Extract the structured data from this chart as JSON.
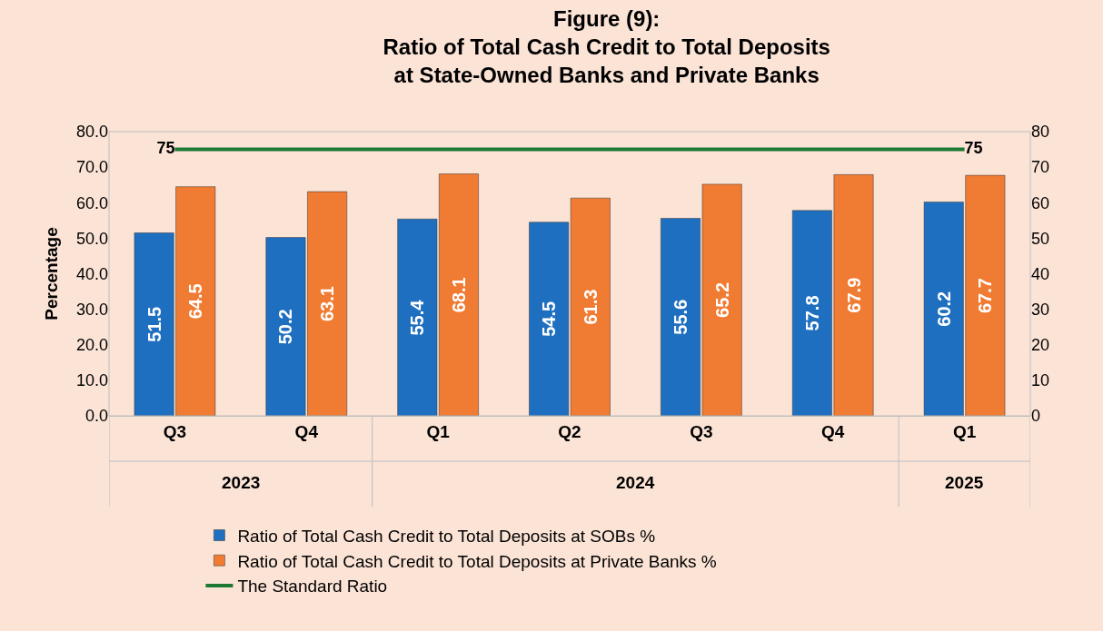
{
  "chart_data": {
    "type": "bar",
    "title": "Figure (9):\nRatio of Total Cash Credit to Total Deposits\nat State-Owned Banks and Private Banks",
    "ylabel": "Percentage",
    "categories": [
      "Q3",
      "Q4",
      "Q1",
      "Q2",
      "Q3",
      "Q4",
      "Q1"
    ],
    "annotations": [
      "2023",
      "2024",
      "2025"
    ],
    "series": [
      {
        "name": "Ratio of Total Cash Credit to Total Deposits at SOBs %",
        "color": "#1f6fc0",
        "values": [
          51.5,
          50.2,
          55.4,
          54.5,
          55.6,
          57.8,
          60.2
        ]
      },
      {
        "name": "Ratio of Total Cash Credit to Total Deposits at Private Banks %",
        "color": "#f07b32",
        "values": [
          64.5,
          63.1,
          68.1,
          61.3,
          65.2,
          67.9,
          67.7
        ]
      },
      {
        "name": "The Standard Ratio",
        "type": "line",
        "color": "#1e7a32",
        "values": [
          75,
          75,
          75,
          75,
          75,
          75,
          75
        ],
        "value_labels": [
          "75",
          null,
          null,
          null,
          null,
          null,
          "75"
        ]
      }
    ],
    "ylim": [
      0,
      80
    ],
    "yticks": [
      {
        "value": 0,
        "label": "0.0"
      },
      {
        "value": 10,
        "label": "10.0"
      },
      {
        "value": 20,
        "label": "20.0"
      },
      {
        "value": 30,
        "label": "30.0"
      },
      {
        "value": 40,
        "label": "40.0"
      },
      {
        "value": 50,
        "label": "50.0"
      },
      {
        "value": 60,
        "label": "60.0"
      },
      {
        "value": 70,
        "label": "70.0"
      },
      {
        "value": 80,
        "label": "80.0"
      }
    ],
    "y2lim": [
      0,
      80
    ],
    "y2ticks": [
      0,
      10,
      20,
      30,
      40,
      50,
      60,
      70,
      80
    ],
    "data_labels": true,
    "grid": false,
    "legend": "bottom"
  }
}
